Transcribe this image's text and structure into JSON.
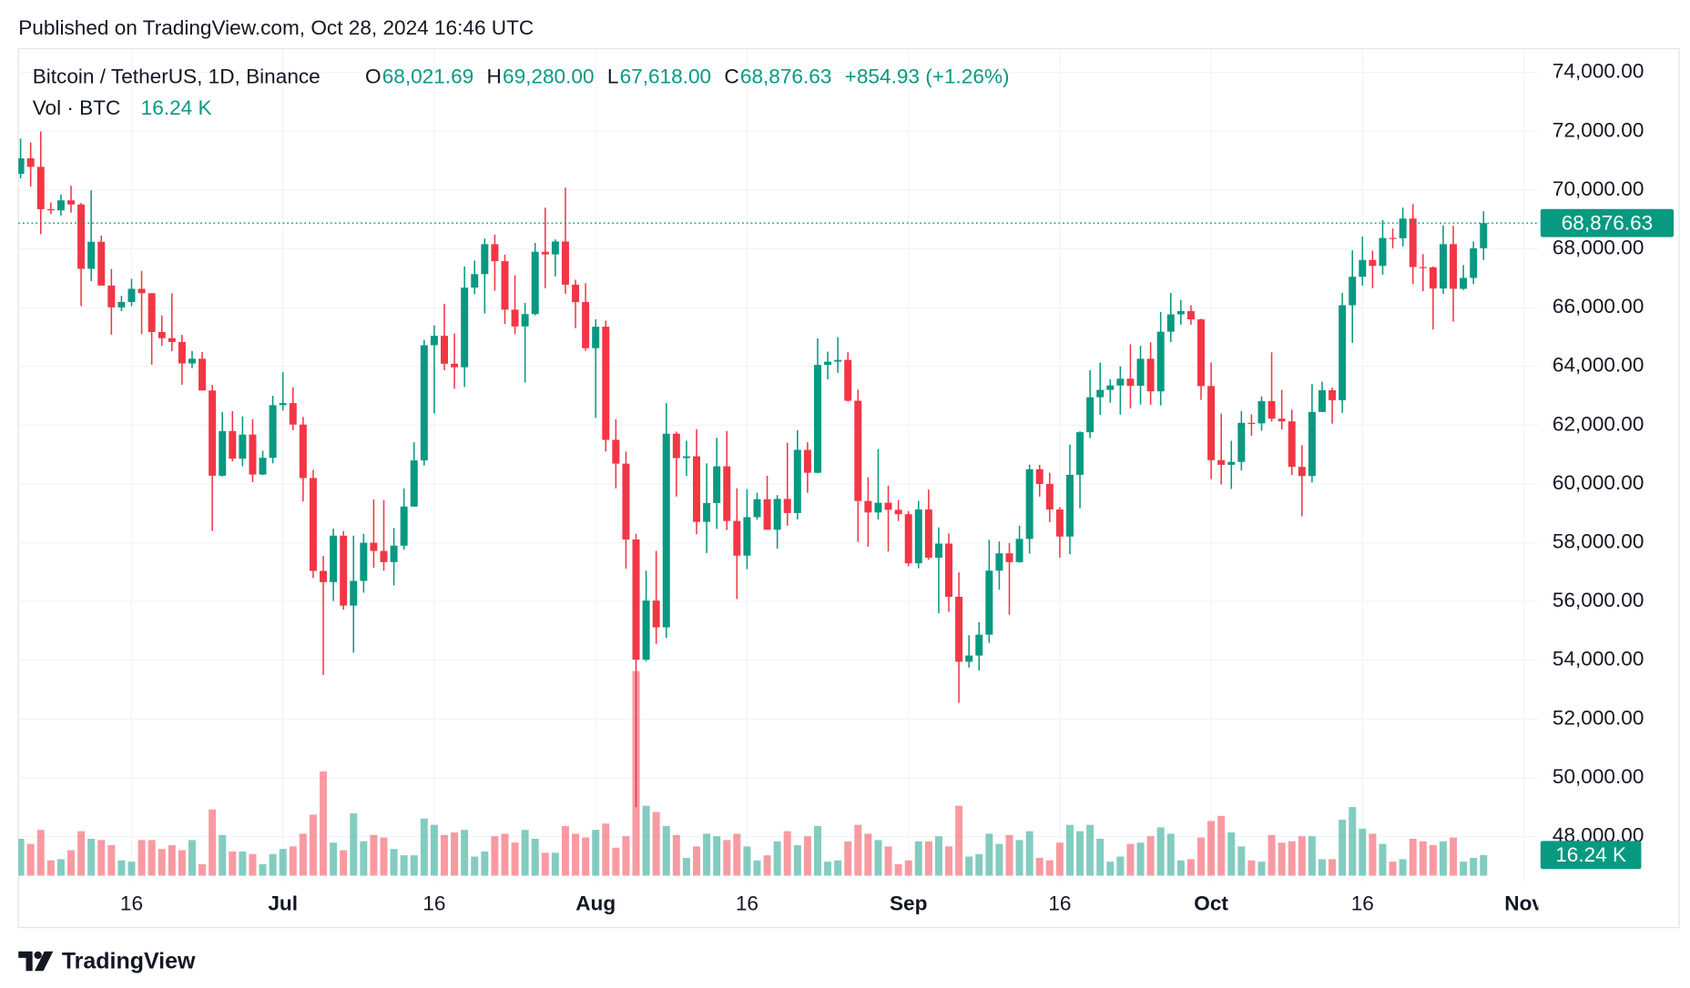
{
  "published": "Published on TradingView.com, Oct 28, 2024 16:46 UTC",
  "brand": "TradingView",
  "chart_data": {
    "type": "candlestick",
    "title": "Bitcoin / TetherUS, 1D, Binance",
    "header_fields": [
      {
        "key": "O",
        "label": "68,021.69"
      },
      {
        "key": "H",
        "label": "69,280.00"
      },
      {
        "key": "L",
        "label": "67,618.00"
      },
      {
        "key": "C",
        "label": "68,876.63"
      }
    ],
    "change": "+854.93 (+1.26%)",
    "up_color": "#089981",
    "down_color": "#f23645",
    "x": [
      "2024-06-05",
      "2024-06-06",
      "2024-06-07",
      "2024-06-08",
      "2024-06-09",
      "2024-06-10",
      "2024-06-11",
      "2024-06-12",
      "2024-06-13",
      "2024-06-14",
      "2024-06-15",
      "2024-06-16",
      "2024-06-17",
      "2024-06-18",
      "2024-06-19",
      "2024-06-20",
      "2024-06-21",
      "2024-06-22",
      "2024-06-23",
      "2024-06-24",
      "2024-06-25",
      "2024-06-26",
      "2024-06-27",
      "2024-06-28",
      "2024-06-29",
      "2024-06-30",
      "2024-07-01",
      "2024-07-02",
      "2024-07-03",
      "2024-07-04",
      "2024-07-05",
      "2024-07-06",
      "2024-07-07",
      "2024-07-08",
      "2024-07-09",
      "2024-07-10",
      "2024-07-11",
      "2024-07-12",
      "2024-07-13",
      "2024-07-14",
      "2024-07-15",
      "2024-07-16",
      "2024-07-17",
      "2024-07-18",
      "2024-07-19",
      "2024-07-20",
      "2024-07-21",
      "2024-07-22",
      "2024-07-23",
      "2024-07-24",
      "2024-07-25",
      "2024-07-26",
      "2024-07-27",
      "2024-07-28",
      "2024-07-29",
      "2024-07-30",
      "2024-07-31",
      "2024-08-01",
      "2024-08-02",
      "2024-08-03",
      "2024-08-04",
      "2024-08-05",
      "2024-08-06",
      "2024-08-07",
      "2024-08-08",
      "2024-08-09",
      "2024-08-10",
      "2024-08-11",
      "2024-08-12",
      "2024-08-13",
      "2024-08-14",
      "2024-08-15",
      "2024-08-16",
      "2024-08-17",
      "2024-08-18",
      "2024-08-19",
      "2024-08-20",
      "2024-08-21",
      "2024-08-22",
      "2024-08-23",
      "2024-08-24",
      "2024-08-25",
      "2024-08-26",
      "2024-08-27",
      "2024-08-28",
      "2024-08-29",
      "2024-08-30",
      "2024-08-31",
      "2024-09-01",
      "2024-09-02",
      "2024-09-03",
      "2024-09-04",
      "2024-09-05",
      "2024-09-06",
      "2024-09-07",
      "2024-09-08",
      "2024-09-09",
      "2024-09-10",
      "2024-09-11",
      "2024-09-12",
      "2024-09-13",
      "2024-09-14",
      "2024-09-15",
      "2024-09-16",
      "2024-09-17",
      "2024-09-18",
      "2024-09-19",
      "2024-09-20",
      "2024-09-21",
      "2024-09-22",
      "2024-09-23",
      "2024-09-24",
      "2024-09-25",
      "2024-09-26",
      "2024-09-27",
      "2024-09-28",
      "2024-09-29",
      "2024-09-30",
      "2024-10-01",
      "2024-10-02",
      "2024-10-03",
      "2024-10-04",
      "2024-10-05",
      "2024-10-06",
      "2024-10-07",
      "2024-10-08",
      "2024-10-09",
      "2024-10-10",
      "2024-10-11",
      "2024-10-12",
      "2024-10-13",
      "2024-10-14",
      "2024-10-15",
      "2024-10-16",
      "2024-10-17",
      "2024-10-18",
      "2024-10-19",
      "2024-10-20",
      "2024-10-21",
      "2024-10-22",
      "2024-10-23",
      "2024-10-24",
      "2024-10-25",
      "2024-10-26",
      "2024-10-27",
      "2024-10-28"
    ],
    "open": [
      70550,
      71080,
      70790,
      69350,
      69310,
      69650,
      69510,
      67320,
      68240,
      66750,
      66010,
      66190,
      66640,
      66490,
      65170,
      64960,
      64830,
      64100,
      64260,
      63180,
      60280,
      61800,
      60860,
      61680,
      60320,
      60890,
      62680,
      62750,
      62020,
      60200,
      57040,
      56660,
      58240,
      55860,
      56700,
      58000,
      57720,
      57340,
      57900,
      59230,
      60800,
      64720,
      65040,
      64090,
      63970,
      66680,
      67140,
      68160,
      67580,
      65930,
      65360,
      65780,
      67900,
      67810,
      68250,
      66780,
      66190,
      64620,
      65350,
      61500,
      60690,
      58110,
      54020,
      56030,
      55120,
      61710,
      60880,
      60940,
      58710,
      59350,
      60600,
      58740,
      57560,
      58870,
      59480,
      58440,
      59490,
      59010,
      61160,
      60380,
      64050,
      64160,
      64220,
      62830,
      59420,
      59030,
      59360,
      59120,
      58970,
      57300,
      59130,
      57490,
      57970,
      56160,
      53950,
      54160,
      54870,
      57050,
      57640,
      57340,
      58130,
      60500,
      60000,
      59130,
      58210,
      60310,
      61760,
      62950,
      63200,
      63350,
      63580,
      63340,
      64260,
      63150,
      65180,
      65770,
      65880,
      65600,
      63330,
      60810,
      60650,
      60750,
      62080,
      62060,
      62820,
      62220,
      62130,
      60580,
      60270,
      62450,
      63190,
      62850,
      66080,
      67050,
      67620,
      67420,
      68370,
      68360,
      69030,
      67380,
      67370,
      66650,
      68160,
      66640,
      67010,
      68021.69
    ],
    "high": [
      71750,
      71620,
      71990,
      69580,
      69850,
      70150,
      69560,
      69990,
      68450,
      67310,
      66400,
      66980,
      67250,
      66490,
      65730,
      66480,
      65070,
      64520,
      64490,
      63370,
      62450,
      62480,
      62300,
      62200,
      61130,
      63000,
      63800,
      63290,
      62280,
      60480,
      57550,
      58480,
      58400,
      58240,
      58300,
      59470,
      59450,
      58500,
      59850,
      61420,
      64900,
      65390,
      66130,
      65120,
      67400,
      67600,
      68350,
      68480,
      67800,
      67100,
      66160,
      68200,
      69400,
      68320,
      70080,
      66950,
      66830,
      65600,
      65560,
      62200,
      61100,
      58300,
      57050,
      57720,
      62750,
      61780,
      61470,
      61860,
      60700,
      61570,
      61800,
      59850,
      59820,
      59700,
      60280,
      59620,
      61400,
      61830,
      61420,
      64950,
      64500,
      65000,
      64480,
      63210,
      60230,
      61190,
      59940,
      59450,
      59070,
      59420,
      59810,
      58520,
      58320,
      56990,
      54850,
      55300,
      58100,
      58040,
      57990,
      58580,
      60660,
      60650,
      60380,
      59210,
      61340,
      61790,
      63870,
      64130,
      63560,
      64000,
      64750,
      64700,
      64820,
      65850,
      66500,
      66260,
      66080,
      65620,
      64130,
      62390,
      61470,
      62480,
      62370,
      62980,
      64480,
      63200,
      62530,
      61320,
      63400,
      63480,
      63280,
      66500,
      67950,
      68420,
      67940,
      68980,
      68690,
      69400,
      69520,
      67820,
      67400,
      68800,
      68780,
      67450,
      68250,
      69280
    ],
    "low": [
      70400,
      70120,
      68500,
      69180,
      69130,
      69230,
      66050,
      66900,
      66760,
      65080,
      65880,
      66050,
      65100,
      64060,
      64700,
      64520,
      63380,
      63940,
      63180,
      58400,
      60250,
      60770,
      60600,
      60060,
      60300,
      60700,
      62500,
      61830,
      59400,
      56800,
      53500,
      56020,
      55720,
      54260,
      56300,
      57150,
      57050,
      56550,
      57760,
      59220,
      60630,
      62400,
      63870,
      63240,
      63300,
      66460,
      65800,
      66570,
      65440,
      65100,
      63450,
      65740,
      66660,
      67060,
      66470,
      65300,
      64530,
      62250,
      61100,
      59850,
      57120,
      49000,
      53970,
      54560,
      54760,
      59570,
      60270,
      58290,
      57650,
      58470,
      58430,
      56080,
      57100,
      58780,
      58440,
      57800,
      58580,
      58790,
      59700,
      60360,
      63560,
      63780,
      62800,
      58030,
      57860,
      58790,
      57700,
      58740,
      57200,
      57130,
      57420,
      55600,
      55650,
      52550,
      53750,
      53650,
      54590,
      56400,
      55550,
      57320,
      57630,
      59570,
      58700,
      57490,
      57610,
      59170,
      61560,
      62350,
      62760,
      62360,
      62570,
      62700,
      62690,
      62670,
      64830,
      65420,
      65420,
      62860,
      60160,
      59980,
      59830,
      60460,
      61640,
      61810,
      62120,
      61850,
      60300,
      58900,
      60050,
      62440,
      62050,
      62420,
      64800,
      66750,
      66660,
      67120,
      68020,
      68080,
      66800,
      66560,
      65260,
      66470,
      65520,
      66600,
      66800,
      67618
    ],
    "close": [
      71080,
      70790,
      69350,
      69310,
      69650,
      69510,
      67320,
      68240,
      66750,
      66010,
      66190,
      66640,
      66490,
      65170,
      64960,
      64830,
      64100,
      64260,
      63180,
      60280,
      61800,
      60860,
      61680,
      60320,
      60890,
      62680,
      62750,
      62020,
      60200,
      57040,
      56660,
      58240,
      55860,
      56700,
      58000,
      57720,
      57340,
      57900,
      59230,
      60800,
      64720,
      65040,
      64090,
      63970,
      66680,
      67140,
      68160,
      67580,
      65930,
      65360,
      65780,
      67900,
      67810,
      68250,
      66780,
      66190,
      64620,
      65350,
      61500,
      60690,
      58110,
      54020,
      56030,
      55120,
      61710,
      60880,
      60940,
      58710,
      59350,
      60600,
      58740,
      57560,
      58870,
      59480,
      58440,
      59490,
      59010,
      61160,
      60380,
      64050,
      64160,
      64220,
      62830,
      59420,
      59030,
      59360,
      59120,
      58970,
      57300,
      59130,
      57490,
      57970,
      56160,
      53950,
      54160,
      54870,
      57050,
      57640,
      57340,
      58130,
      60500,
      60000,
      59130,
      58210,
      60310,
      61760,
      62950,
      63200,
      63350,
      63580,
      63340,
      64260,
      63150,
      65180,
      65770,
      65880,
      65600,
      63330,
      60810,
      60650,
      60750,
      62080,
      62060,
      62820,
      62220,
      62130,
      60580,
      60270,
      62450,
      63190,
      62850,
      66080,
      67050,
      67620,
      67420,
      68370,
      68360,
      69030,
      67380,
      67370,
      66650,
      68160,
      66640,
      67010,
      68020,
      68876.63
    ],
    "volume": {
      "name": "Vol · BTC",
      "last_label": "16.24 K",
      "values": [
        29,
        25,
        36,
        12,
        13,
        20,
        35,
        29,
        28,
        24,
        12,
        11,
        28,
        28,
        21,
        24,
        20,
        28,
        9,
        52,
        32,
        19,
        19,
        17,
        9,
        17,
        21,
        23,
        33,
        48,
        82,
        26,
        20,
        49,
        27,
        32,
        30,
        21,
        16,
        16,
        45,
        40,
        32,
        34,
        36,
        15,
        19,
        31,
        33,
        26,
        36,
        29,
        18,
        18,
        39,
        33,
        30,
        36,
        41,
        22,
        31,
        161,
        55,
        50,
        39,
        32,
        14,
        23,
        33,
        31,
        28,
        33,
        23,
        12,
        16,
        27,
        35,
        24,
        31,
        39,
        11,
        12,
        27,
        40,
        33,
        28,
        23,
        9,
        12,
        27,
        27,
        31,
        23,
        55,
        15,
        17,
        33,
        25,
        32,
        28,
        35,
        14,
        12,
        26,
        40,
        35,
        40,
        29,
        11,
        15,
        25,
        26,
        31,
        38,
        33,
        12,
        13,
        30,
        43,
        47,
        34,
        23,
        12,
        11,
        32,
        26,
        27,
        31,
        31,
        13,
        13,
        44,
        54,
        37,
        33,
        25,
        11,
        13,
        29,
        27,
        24,
        27,
        30,
        11,
        14,
        16.24
      ]
    },
    "xlim": [
      "2024-06-05",
      "2024-11-02"
    ],
    "xticks": [
      {
        "value": "2024-06-16",
        "label": "16"
      },
      {
        "value": "2024-07-01",
        "label": "Jul"
      },
      {
        "value": "2024-07-16",
        "label": "16"
      },
      {
        "value": "2024-08-01",
        "label": "Aug"
      },
      {
        "value": "2024-08-16",
        "label": "16"
      },
      {
        "value": "2024-09-01",
        "label": "Sep"
      },
      {
        "value": "2024-09-16",
        "label": "16"
      },
      {
        "value": "2024-10-01",
        "label": "Oct"
      },
      {
        "value": "2024-10-16",
        "label": "16"
      },
      {
        "value": "2024-11-01",
        "label": "Nov"
      }
    ],
    "ylim": [
      46450,
      74810
    ],
    "yticks": [
      {
        "value": 74000,
        "label": "74,000.00"
      },
      {
        "value": 72000,
        "label": "72,000.00"
      },
      {
        "value": 70000,
        "label": "70,000.00"
      },
      {
        "value": 68000,
        "label": "68,000.00"
      },
      {
        "value": 66000,
        "label": "66,000.00"
      },
      {
        "value": 64000,
        "label": "64,000.00"
      },
      {
        "value": 62000,
        "label": "62,000.00"
      },
      {
        "value": 60000,
        "label": "60,000.00"
      },
      {
        "value": 58000,
        "label": "58,000.00"
      },
      {
        "value": 56000,
        "label": "56,000.00"
      },
      {
        "value": 54000,
        "label": "54,000.00"
      },
      {
        "value": 52000,
        "label": "52,000.00"
      },
      {
        "value": 50000,
        "label": "50,000.00"
      },
      {
        "value": 48000,
        "label": "48,000.00"
      }
    ],
    "grid": true
  }
}
